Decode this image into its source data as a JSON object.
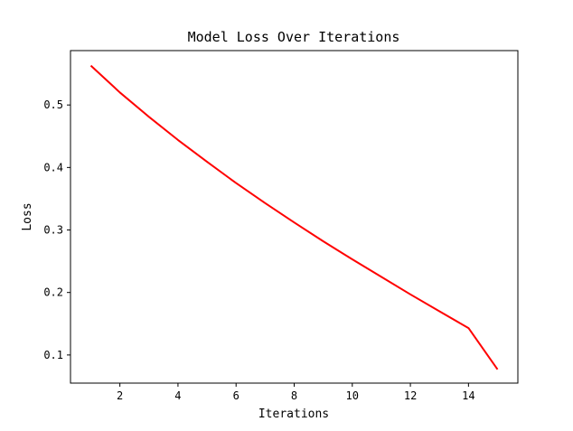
{
  "chart_data": {
    "type": "line",
    "title": "Model Loss Over Iterations",
    "xlabel": "Iterations",
    "ylabel": "Loss",
    "xlim": [
      0.3,
      15.7
    ],
    "ylim": [
      0.055,
      0.587
    ],
    "xticks": [
      2,
      4,
      6,
      8,
      10,
      12,
      14
    ],
    "yticks": [
      0.1,
      0.2,
      0.3,
      0.4,
      0.5
    ],
    "grid": false,
    "series": [
      {
        "color": "#ff0000",
        "x": [
          1,
          2,
          3,
          4,
          5,
          6,
          7,
          8,
          9,
          10,
          11,
          12,
          13,
          14,
          15
        ],
        "y": [
          0.563,
          0.52,
          0.481,
          0.444,
          0.409,
          0.375,
          0.343,
          0.312,
          0.282,
          0.253,
          0.225,
          0.197,
          0.17,
          0.143,
          0.077
        ]
      }
    ]
  }
}
